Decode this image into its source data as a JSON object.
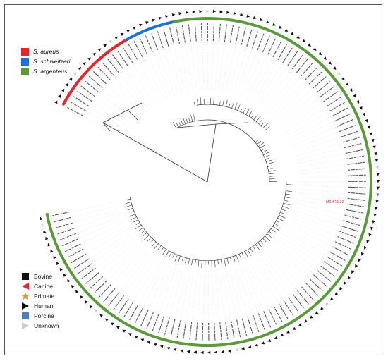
{
  "species_legend": [
    {
      "label": "S. aureus",
      "color": "#e8262a"
    },
    {
      "label": "S. schweitzeri",
      "color": "#1f6fd6"
    },
    {
      "label": "S. argenteus",
      "color": "#5a9a3a"
    }
  ],
  "host_legend": [
    {
      "label": "Bovine",
      "icon": "square-icon",
      "color": "#111111"
    },
    {
      "label": "Canine",
      "icon": "triangle-left-icon",
      "color": "#e8262a"
    },
    {
      "label": "Primate",
      "icon": "star-icon",
      "color": "#c9a13a"
    },
    {
      "label": "Human",
      "icon": "triangle-right-icon",
      "color": "#111111"
    },
    {
      "label": "Porcine",
      "icon": "square-icon",
      "color": "#4a7fc8"
    },
    {
      "label": "Unknown",
      "icon": "triangle-right-icon",
      "color": "#cccccc"
    }
  ],
  "highlighted_taxon": {
    "label": "MSHR1132",
    "color": "#e8262a"
  },
  "colors": {
    "branch": "#333333",
    "aureus": "#e8262a",
    "schweitzeri": "#1f6fd6",
    "argenteus": "#5a9a3a",
    "frame": "#555555"
  }
}
